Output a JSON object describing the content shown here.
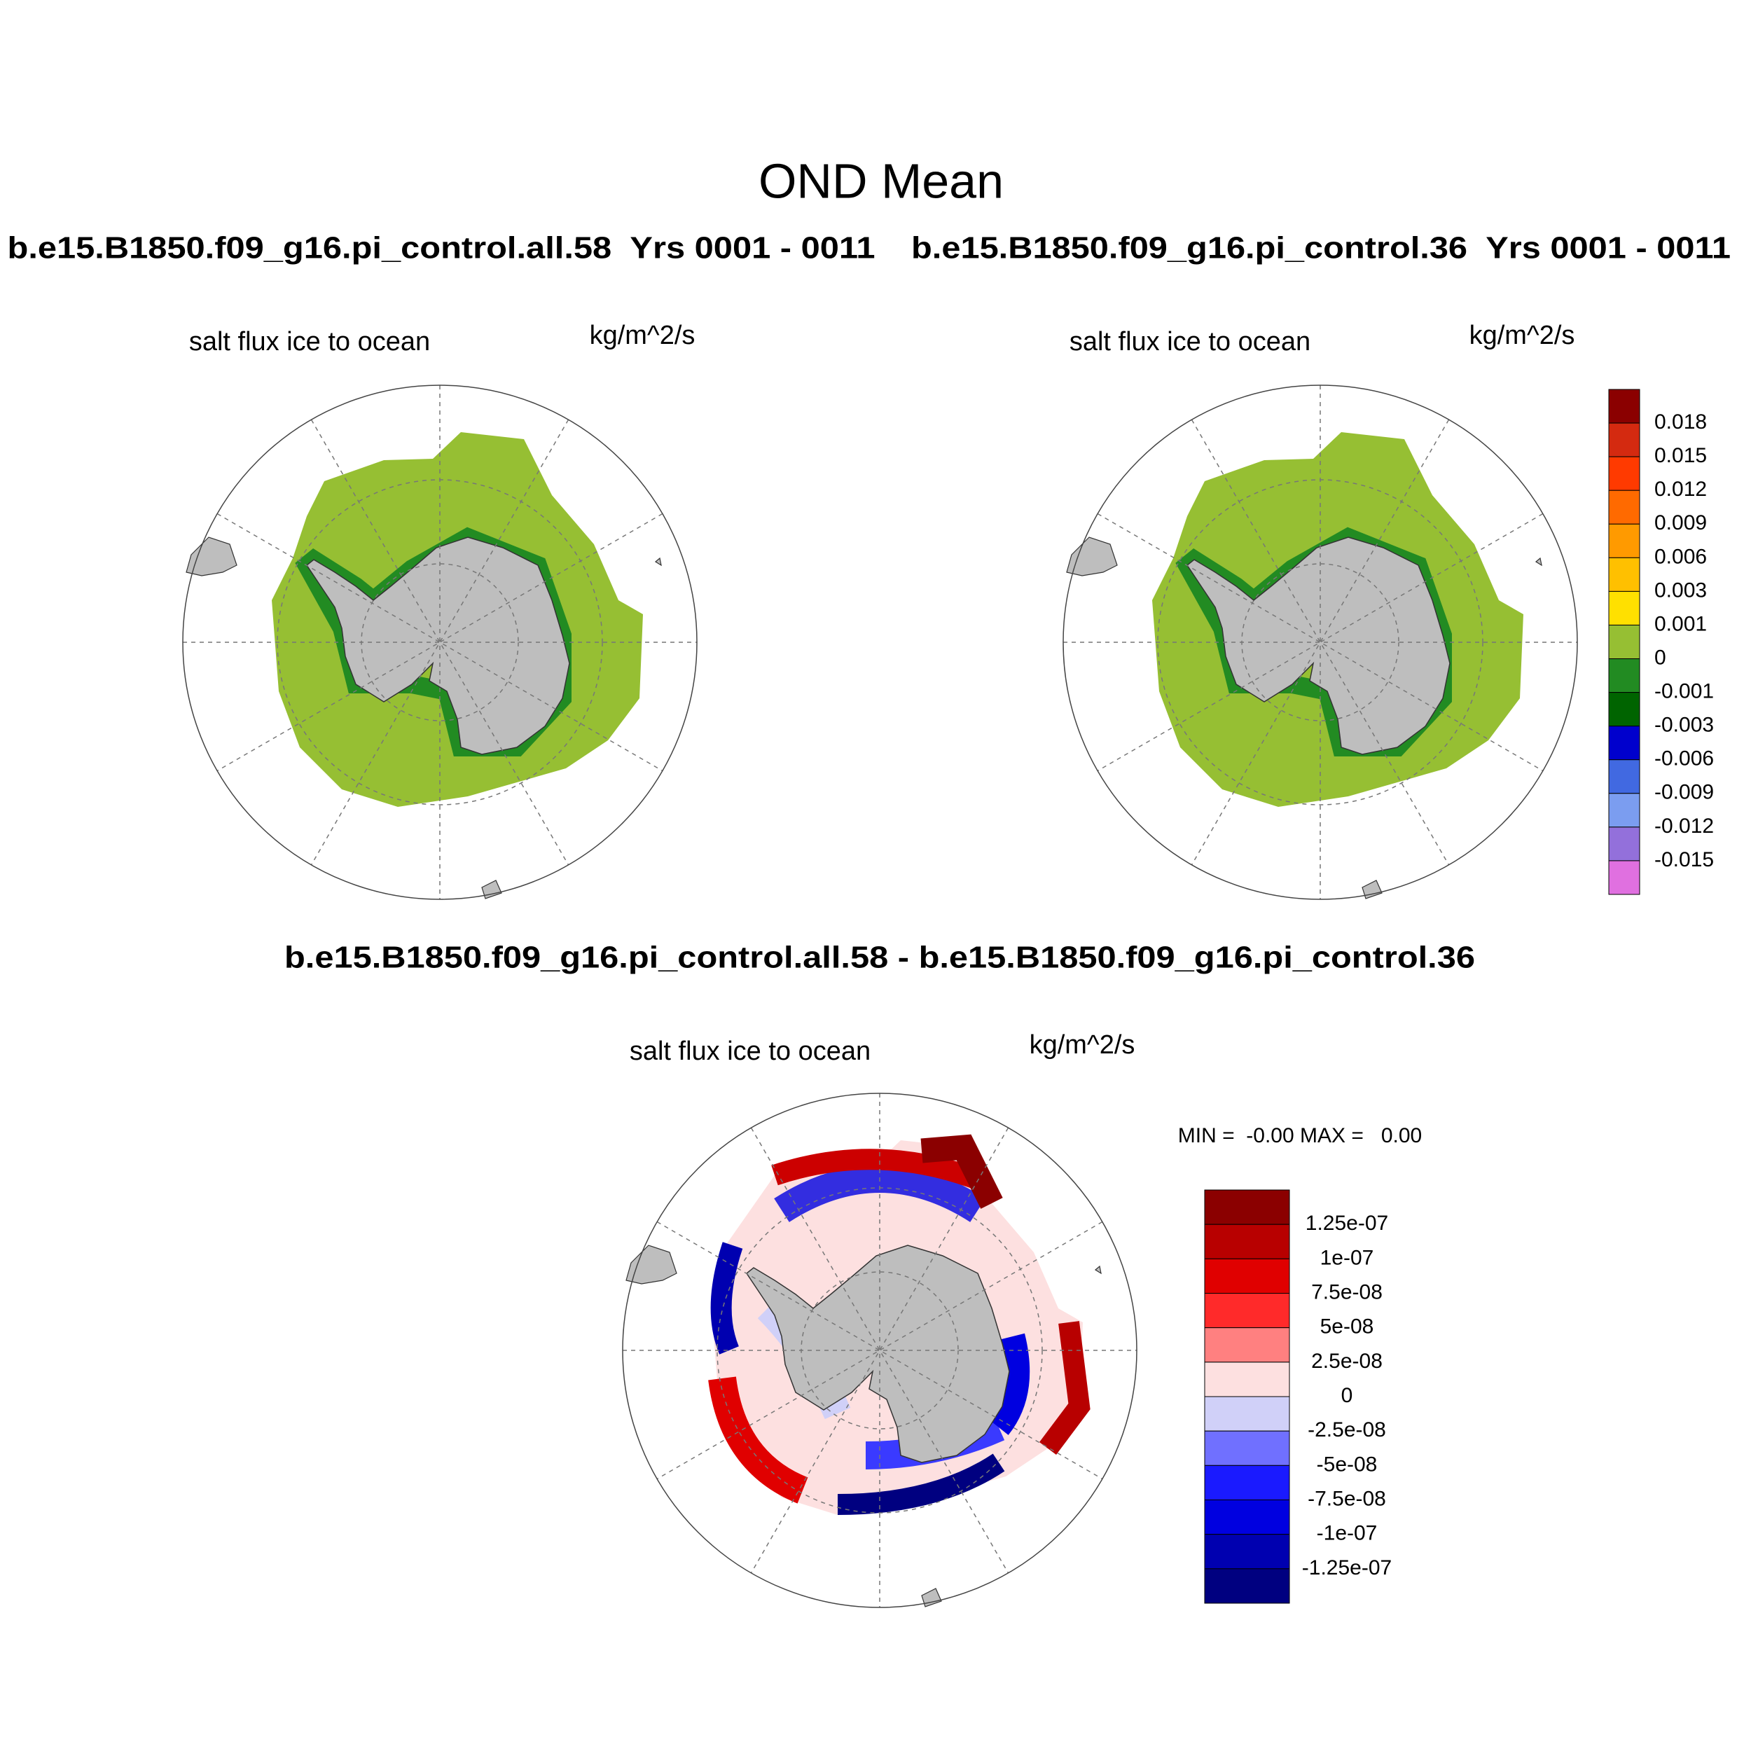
{
  "title": "OND Mean",
  "panels": [
    {
      "title": "b.e15.B1850.f09_g16.pi_control.all.58  Yrs 0001 - 0011",
      "left_string": "salt flux ice to ocean",
      "right_string": "kg/m^2/s"
    },
    {
      "title": "b.e15.B1850.f09_g16.pi_control.36  Yrs 0001 - 0011",
      "left_string": "salt flux ice to ocean",
      "right_string": "kg/m^2/s"
    },
    {
      "title": "b.e15.B1850.f09_g16.pi_control.all.58 - b.e15.B1850.f09_g16.pi_control.36",
      "left_string": "salt flux ice to ocean",
      "right_string": "kg/m^2/s"
    }
  ],
  "min_max": "MIN =  -0.00 MAX =   0.00",
  "colorbars": [
    {
      "colors": [
        "#8b0000",
        "#d42a10",
        "#ff3a00",
        "#ff6a00",
        "#ff9a00",
        "#ffc000",
        "#ffe000",
        "#96bf33",
        "#228b22",
        "#006400",
        "#0000cd",
        "#4169e1",
        "#7b9df0",
        "#9370db",
        "#e070e0"
      ],
      "labels": [
        "0.018",
        "0.015",
        "0.012",
        "0.009",
        "0.006",
        "0.003",
        "0.001",
        "0",
        "-0.001",
        "-0.003",
        "-0.006",
        "-0.009",
        "-0.012",
        "-0.015"
      ]
    },
    {
      "colors": [
        "#8b0000",
        "#b80000",
        "#e00000",
        "#ff2a2a",
        "#ff8080",
        "#fde0e0",
        "#d0d0f8",
        "#7070ff",
        "#1a1aff",
        "#0000e0",
        "#0000b0",
        "#000080"
      ],
      "labels": [
        "1.25e-07",
        "1e-07",
        "7.5e-08",
        "5e-08",
        "2.5e-08",
        "0",
        "-2.5e-08",
        "-5e-08",
        "-7.5e-08",
        "-1e-07",
        "-1.25e-07"
      ]
    }
  ]
}
